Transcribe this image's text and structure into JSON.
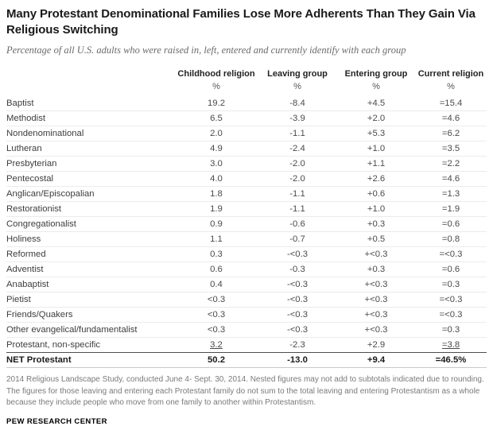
{
  "chart_data": {
    "type": "table",
    "title": "Many Protestant Denominational Families Lose More Adherents Than They Gain Via Religious Switching",
    "subtitle": "Percentage of all U.S. adults who were raised in, left, entered and currently identify with each group",
    "columns": [
      "Childhood religion",
      "Leaving group",
      "Entering group",
      "Current religion"
    ],
    "unit_row": [
      "%",
      "%",
      "%",
      "%"
    ],
    "rows": [
      {
        "label": "Baptist",
        "childhood": "19.2",
        "leaving": "-8.4",
        "entering": "+4.5",
        "current": "=15.4"
      },
      {
        "label": "Methodist",
        "childhood": "6.5",
        "leaving": "-3.9",
        "entering": "+2.0",
        "current": "=4.6"
      },
      {
        "label": "Nondenominational",
        "childhood": "2.0",
        "leaving": "-1.1",
        "entering": "+5.3",
        "current": "=6.2"
      },
      {
        "label": "Lutheran",
        "childhood": "4.9",
        "leaving": "-2.4",
        "entering": "+1.0",
        "current": "=3.5"
      },
      {
        "label": "Presbyterian",
        "childhood": "3.0",
        "leaving": "-2.0",
        "entering": "+1.1",
        "current": "=2.2"
      },
      {
        "label": "Pentecostal",
        "childhood": "4.0",
        "leaving": "-2.0",
        "entering": "+2.6",
        "current": "=4.6"
      },
      {
        "label": "Anglican/Episcopalian",
        "childhood": "1.8",
        "leaving": "-1.1",
        "entering": "+0.6",
        "current": "=1.3"
      },
      {
        "label": "Restorationist",
        "childhood": "1.9",
        "leaving": "-1.1",
        "entering": "+1.0",
        "current": "=1.9"
      },
      {
        "label": "Congregationalist",
        "childhood": "0.9",
        "leaving": "-0.6",
        "entering": "+0.3",
        "current": "=0.6"
      },
      {
        "label": "Holiness",
        "childhood": "1.1",
        "leaving": "-0.7",
        "entering": "+0.5",
        "current": "=0.8"
      },
      {
        "label": "Reformed",
        "childhood": "0.3",
        "leaving": "-<0.3",
        "entering": "+<0.3",
        "current": "=<0.3"
      },
      {
        "label": "Adventist",
        "childhood": "0.6",
        "leaving": "-0.3",
        "entering": "+0.3",
        "current": "=0.6"
      },
      {
        "label": "Anabaptist",
        "childhood": "0.4",
        "leaving": "-<0.3",
        "entering": "+<0.3",
        "current": "=0.3"
      },
      {
        "label": "Pietist",
        "childhood": "<0.3",
        "leaving": "-<0.3",
        "entering": "+<0.3",
        "current": "=<0.3"
      },
      {
        "label": "Friends/Quakers",
        "childhood": "<0.3",
        "leaving": "-<0.3",
        "entering": "+<0.3",
        "current": "=<0.3"
      },
      {
        "label": "Other evangelical/fundamentalist",
        "childhood": "<0.3",
        "leaving": "-<0.3",
        "entering": "+<0.3",
        "current": "=0.3"
      },
      {
        "label": "Protestant, non-specific",
        "childhood": "3.2",
        "leaving": "-2.3",
        "entering": "+2.9",
        "current": "=3.8",
        "underline": true
      },
      {
        "label": "NET Protestant",
        "childhood": "50.2",
        "leaving": "-13.0",
        "entering": "+9.4",
        "current": "=46.5%",
        "net": true
      }
    ]
  },
  "footer": {
    "note": "2014 Religious Landscape Study, conducted June 4- Sept. 30, 2014. Nested figures may not add to subtotals indicated due to rounding. The figures for those leaving and entering each Protestant family do not sum to the total leaving and entering Protestantism as a whole because they include people who move from one family to another within Protestantism.",
    "source": "PEW RESEARCH CENTER"
  }
}
